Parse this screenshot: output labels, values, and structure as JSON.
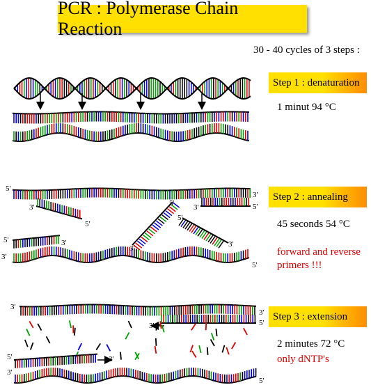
{
  "title": "PCR : Polymerase Chain Reaction",
  "subtitle": "30 - 40 cycles of 3 steps :",
  "steps": [
    {
      "label": "Step 1 : denaturation",
      "detail": "1 minut 94 °C"
    },
    {
      "label": "Step 2 : annealing",
      "detail": "45 seconds 54 °C",
      "note_line1": "forward and reverse",
      "note_line2": "primers !!!"
    },
    {
      "label": "Step 3 : extension",
      "detail": "2 minutes 72 °C",
      "note": "only dNTP's"
    }
  ],
  "ends": {
    "five": "5'",
    "three": "3'"
  },
  "colors": {
    "title_bg": "#ffe000",
    "note_text": "#e00000",
    "base_colors": [
      "#e00000",
      "#00a000",
      "#0000e0",
      "#000000"
    ]
  }
}
